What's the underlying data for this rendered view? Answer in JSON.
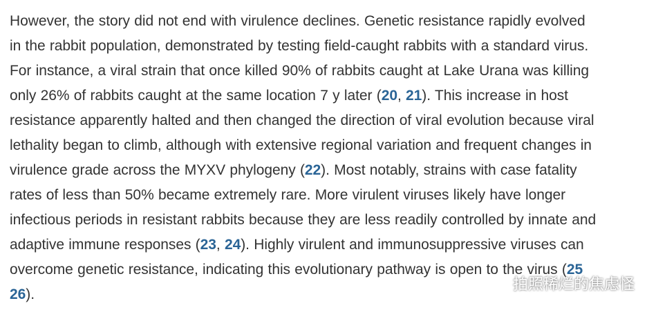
{
  "paragraph": {
    "lines": [
      [
        {
          "t": "However, the story did not end with virulence declines. Genetic resistance rapidly evolved"
        }
      ],
      [
        {
          "t": "in the rabbit population, demonstrated by testing field-caught rabbits with a standard virus."
        }
      ],
      [
        {
          "t": "For instance, a viral strain that once killed 90% of rabbits caught at Lake Urana was killing"
        }
      ],
      [
        {
          "t": "only 26% of rabbits caught at the same location 7 y later ("
        },
        {
          "t": "20",
          "ref": true
        },
        {
          "t": ", "
        },
        {
          "t": "21",
          "ref": true
        },
        {
          "t": "). This increase in host"
        }
      ],
      [
        {
          "t": "resistance apparently halted and then changed the direction of viral evolution because viral"
        }
      ],
      [
        {
          "t": "lethality began to climb, although with extensive regional variation and frequent changes in"
        }
      ],
      [
        {
          "t": "virulence grade across the MYXV phylogeny ("
        },
        {
          "t": "22",
          "ref": true
        },
        {
          "t": "). Most notably, strains with case fatality"
        }
      ],
      [
        {
          "t": "rates of less than 50% became extremely rare. More virulent viruses likely have longer"
        }
      ],
      [
        {
          "t": "infectious periods in resistant rabbits because they are less readily controlled by innate and"
        }
      ],
      [
        {
          "t": "adaptive immune responses ("
        },
        {
          "t": "23",
          "ref": true
        },
        {
          "t": ", "
        },
        {
          "t": "24",
          "ref": true
        },
        {
          "t": "). Highly virulent and immunosuppressive viruses can"
        }
      ],
      [
        {
          "t": "overcome genetic resistance, indicating this evolutionary pathway is open to the virus ("
        },
        {
          "t": "25",
          "ref": true
        }
      ],
      [
        {
          "t": "26",
          "ref": true
        },
        {
          "t": ")."
        }
      ]
    ]
  },
  "watermark": {
    "text": "拍照稀烂的焦虑怪",
    "icon": "wechat-icon"
  },
  "colors": {
    "text": "#333333",
    "link": "#2a6496"
  }
}
